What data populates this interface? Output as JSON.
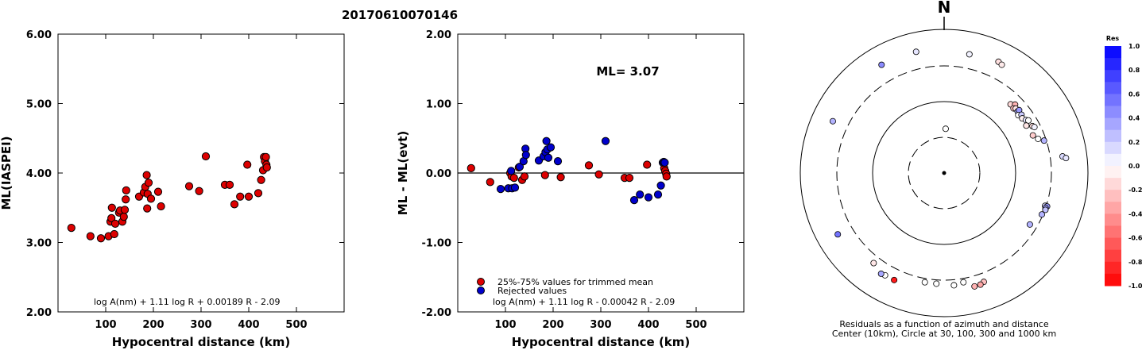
{
  "title": "20170610070146",
  "chart_data": [
    {
      "type": "scatter",
      "ylabel": "ML(IASPEI)",
      "xlabel": "Hypocentral distance (km)",
      "xlim": [
        0,
        600
      ],
      "ylim": [
        2.0,
        6.0
      ],
      "yticks": [
        "2.00",
        "3.00",
        "4.00",
        "5.00",
        "6.00"
      ],
      "xticks": [
        "100",
        "200",
        "300",
        "400",
        "500"
      ],
      "formula": "log A(nm) + 1.11 log R + 0.00189 R - 2.09",
      "series": [
        {
          "color": "#dd0000",
          "points": [
            [
              28,
              3.21
            ],
            [
              68,
              3.09
            ],
            [
              90,
              3.06
            ],
            [
              106,
              3.09
            ],
            [
              110,
              3.3
            ],
            [
              112,
              3.35
            ],
            [
              113,
              3.5
            ],
            [
              118,
              3.12
            ],
            [
              120,
              3.27
            ],
            [
              128,
              3.43
            ],
            [
              130,
              3.46
            ],
            [
              135,
              3.3
            ],
            [
              138,
              3.37
            ],
            [
              140,
              3.47
            ],
            [
              142,
              3.62
            ],
            [
              143,
              3.75
            ],
            [
              170,
              3.66
            ],
            [
              180,
              3.72
            ],
            [
              183,
              3.8
            ],
            [
              186,
              3.97
            ],
            [
              187,
              3.49
            ],
            [
              188,
              3.7
            ],
            [
              190,
              3.86
            ],
            [
              195,
              3.63
            ],
            [
              210,
              3.73
            ],
            [
              216,
              3.52
            ],
            [
              275,
              3.81
            ],
            [
              296,
              3.74
            ],
            [
              310,
              4.24
            ],
            [
              350,
              3.83
            ],
            [
              360,
              3.83
            ],
            [
              370,
              3.55
            ],
            [
              382,
              3.66
            ],
            [
              397,
              4.12
            ],
            [
              400,
              3.66
            ],
            [
              420,
              3.71
            ],
            [
              426,
              3.9
            ],
            [
              430,
              4.04
            ],
            [
              432,
              4.23
            ],
            [
              434,
              4.17
            ],
            [
              436,
              4.23
            ],
            [
              437,
              4.12
            ],
            [
              438,
              4.08
            ]
          ]
        }
      ]
    },
    {
      "type": "scatter",
      "ylabel": "ML - ML(evt)",
      "xlabel": "Hypocentral distance (km)",
      "xlim": [
        0,
        600
      ],
      "ylim": [
        -2.0,
        2.0
      ],
      "yticks": [
        "-2.00",
        "-1.00",
        "0.00",
        "1.00",
        "2.00"
      ],
      "xticks": [
        "100",
        "200",
        "300",
        "400",
        "500"
      ],
      "ml_label": "ML= 3.07",
      "formula": "log A(nm) + 1.11 log R - 0.00042 R - 2.09",
      "legend": [
        "25%-75% values for trimmed mean",
        "Rejected values"
      ],
      "series": [
        {
          "name": "25%-75% values for trimmed mean",
          "color": "#dd0000",
          "points": [
            [
              28,
              0.07
            ],
            [
              68,
              -0.13
            ],
            [
              110,
              0.0
            ],
            [
              113,
              -0.05
            ],
            [
              118,
              -0.07
            ],
            [
              128,
              0.08
            ],
            [
              135,
              -0.1
            ],
            [
              140,
              -0.05
            ],
            [
              183,
              -0.03
            ],
            [
              216,
              -0.06
            ],
            [
              275,
              0.11
            ],
            [
              296,
              -0.02
            ],
            [
              350,
              -0.07
            ],
            [
              360,
              -0.07
            ],
            [
              397,
              0.12
            ],
            [
              433,
              0.07
            ],
            [
              435,
              0.03
            ],
            [
              437,
              -0.01
            ],
            [
              438,
              -0.05
            ]
          ]
        },
        {
          "name": "Rejected values",
          "color": "#0000cc",
          "points": [
            [
              90,
              -0.23
            ],
            [
              106,
              -0.22
            ],
            [
              112,
              0.03
            ],
            [
              114,
              -0.22
            ],
            [
              120,
              -0.21
            ],
            [
              130,
              0.09
            ],
            [
              138,
              0.17
            ],
            [
              142,
              0.35
            ],
            [
              143,
              0.26
            ],
            [
              170,
              0.18
            ],
            [
              180,
              0.24
            ],
            [
              184,
              0.3
            ],
            [
              186,
              0.46
            ],
            [
              188,
              0.34
            ],
            [
              190,
              0.22
            ],
            [
              195,
              0.37
            ],
            [
              210,
              0.17
            ],
            [
              310,
              0.46
            ],
            [
              370,
              -0.39
            ],
            [
              382,
              -0.31
            ],
            [
              400,
              -0.35
            ],
            [
              420,
              -0.31
            ],
            [
              426,
              -0.18
            ],
            [
              430,
              0.15
            ],
            [
              432,
              0.16
            ],
            [
              434,
              0.15
            ]
          ]
        }
      ]
    },
    {
      "type": "polar-scatter",
      "north_label": "N",
      "caption": [
        "Residuals as a function of azimuth and distance",
        "Center (10km), Circle at 30, 100, 300 and 1000 km"
      ],
      "rings_km": [
        30,
        100,
        300,
        1000
      ],
      "colorbar_title": "Res",
      "colorbar_ticks": [
        "1.0",
        "0.8",
        "0.6",
        "0.4",
        "0.2",
        "0.0",
        "-0.2",
        "-0.4",
        "-0.6",
        "-0.8",
        "-1.0"
      ],
      "points": [
        {
          "az": 2,
          "dist_km": 40,
          "res": 0.0
        },
        {
          "az": 12,
          "dist_km": 480,
          "res": 0.05
        },
        {
          "az": 26,
          "dist_km": 520,
          "res": -0.12
        },
        {
          "az": 28,
          "dist_km": 500,
          "res": -0.08
        },
        {
          "az": 347,
          "dist_km": 530,
          "res": 0.1
        },
        {
          "az": 330,
          "dist_km": 540,
          "res": 0.45
        },
        {
          "az": 44,
          "dist_km": 210,
          "res": -0.15
        },
        {
          "az": 46,
          "dist_km": 230,
          "res": -0.3
        },
        {
          "az": 47,
          "dist_km": 205,
          "res": -0.25
        },
        {
          "az": 48,
          "dist_km": 215,
          "res": -0.1
        },
        {
          "az": 50,
          "dist_km": 212,
          "res": 0.3
        },
        {
          "az": 50,
          "dist_km": 225,
          "res": 0.4
        },
        {
          "az": 52,
          "dist_km": 200,
          "res": 0.0
        },
        {
          "az": 53,
          "dist_km": 218,
          "res": 0.2
        },
        {
          "az": 55,
          "dist_km": 208,
          "res": -0.05
        },
        {
          "az": 57,
          "dist_km": 222,
          "res": 0.1
        },
        {
          "az": 58,
          "dist_km": 235,
          "res": 0.0
        },
        {
          "az": 60,
          "dist_km": 205,
          "res": -0.1
        },
        {
          "az": 62,
          "dist_km": 240,
          "res": -0.12
        },
        {
          "az": 63,
          "dist_km": 250,
          "res": 0.05
        },
        {
          "az": 67,
          "dist_km": 215,
          "res": -0.2
        },
        {
          "az": 70,
          "dist_km": 240,
          "res": 0.0
        },
        {
          "az": 72,
          "dist_km": 280,
          "res": 0.3
        },
        {
          "az": 82,
          "dist_km": 450,
          "res": 0.15
        },
        {
          "az": 83,
          "dist_km": 500,
          "res": 0.1
        },
        {
          "az": 108,
          "dist_km": 290,
          "res": 0.15
        },
        {
          "az": 108,
          "dist_km": 310,
          "res": 0.4
        },
        {
          "az": 109,
          "dist_km": 300,
          "res": 0.35
        },
        {
          "az": 110,
          "dist_km": 305,
          "res": 0.25
        },
        {
          "az": 113,
          "dist_km": 290,
          "res": 0.3
        },
        {
          "az": 121,
          "dist_km": 240,
          "res": 0.3
        },
        {
          "az": 160,
          "dist_km": 400,
          "res": -0.25
        },
        {
          "az": 162,
          "dist_km": 420,
          "res": -0.35
        },
        {
          "az": 165,
          "dist_km": 420,
          "res": -0.3
        },
        {
          "az": 170,
          "dist_km": 340,
          "res": 0.0
        },
        {
          "az": 175,
          "dist_km": 360,
          "res": 0.0
        },
        {
          "az": 184,
          "dist_km": 340,
          "res": 0.0
        },
        {
          "az": 190,
          "dist_km": 340,
          "res": 0.0
        },
        {
          "az": 205,
          "dist_km": 430,
          "res": -0.9
        },
        {
          "az": 210,
          "dist_km": 430,
          "res": 0.0
        },
        {
          "az": 212,
          "dist_km": 440,
          "res": 0.35
        },
        {
          "az": 218,
          "dist_km": 380,
          "res": -0.1
        },
        {
          "az": 240,
          "dist_km": 500,
          "res": 0.55
        },
        {
          "az": 295,
          "dist_km": 500,
          "res": 0.3
        }
      ]
    }
  ]
}
